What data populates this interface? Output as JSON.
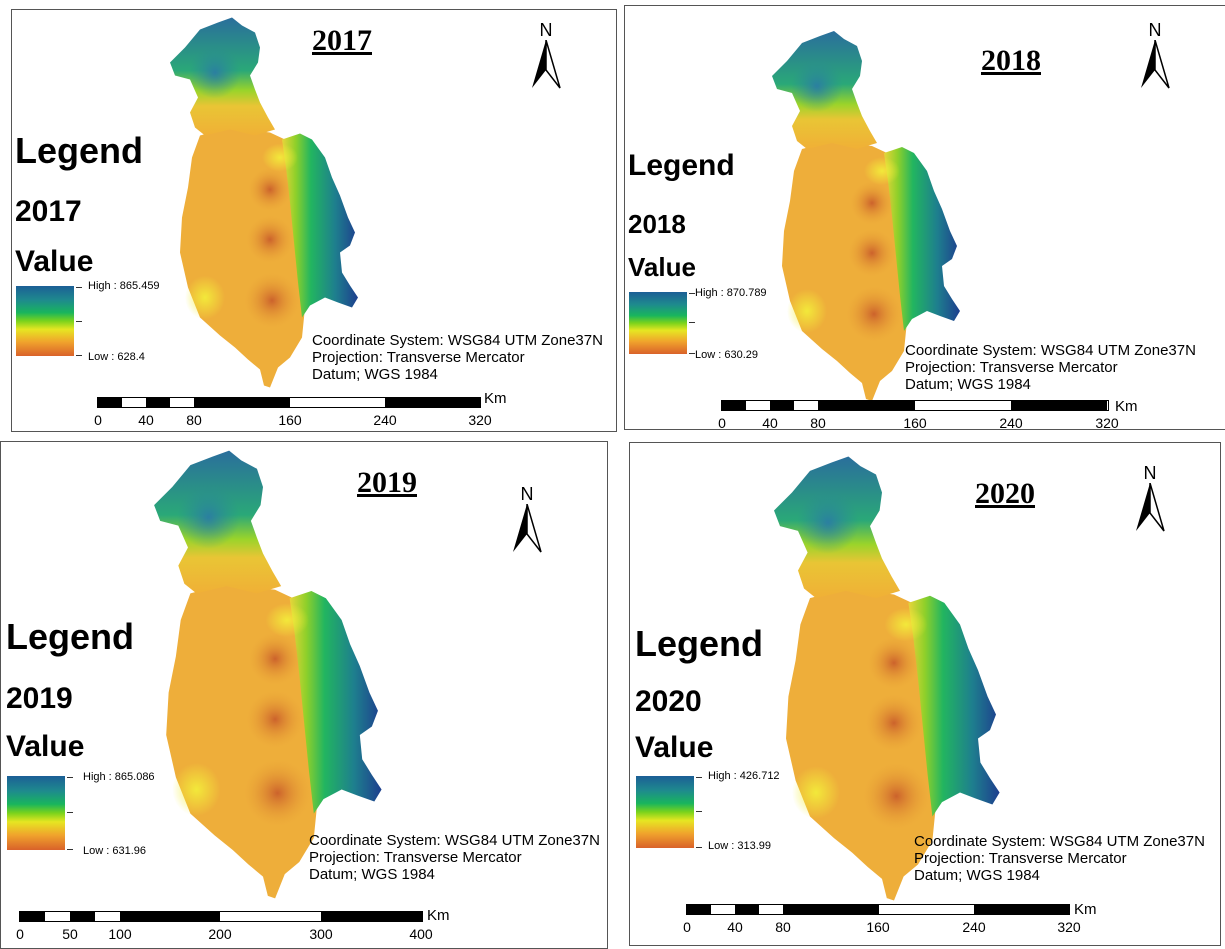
{
  "panels": [
    {
      "title": "2017",
      "legend": {
        "heading": "Legend",
        "year": "2017",
        "value_label": "Value",
        "high": "High : 865.459",
        "low": "Low : 628.4"
      },
      "north": "N",
      "coord": [
        "Coordinate System: WSG84 UTM Zone37N",
        "Projection: Transverse Mercator",
        "Datum; WGS 1984"
      ],
      "scale": {
        "unit": "Km",
        "labels": [
          "0",
          "40",
          "80",
          "160",
          "240",
          "320"
        ]
      }
    },
    {
      "title": "2018",
      "legend": {
        "heading": "Legend",
        "year": "2018",
        "value_label": "Value",
        "high": "High : 870.789",
        "low": "Low : 630.29"
      },
      "north": "N",
      "coord": [
        "Coordinate System: WSG84 UTM Zone37N",
        "Projection: Transverse Mercator",
        "Datum; WGS 1984"
      ],
      "scale": {
        "unit": "Km",
        "labels": [
          "0",
          "40",
          "80",
          "160",
          "240",
          "320"
        ]
      }
    },
    {
      "title": "2019",
      "legend": {
        "heading": "Legend",
        "year": "2019",
        "value_label": "Value",
        "high": "High : 865.086",
        "low": "Low : 631.96"
      },
      "north": "N",
      "coord": [
        "Coordinate System: WSG84 UTM Zone37N",
        "Projection: Transverse Mercator",
        "Datum; WGS 1984"
      ],
      "scale": {
        "unit": "Km",
        "labels": [
          "0",
          "50",
          "100",
          "200",
          "300",
          "400"
        ]
      }
    },
    {
      "title": "2020",
      "legend": {
        "heading": "Legend",
        "year": "2020",
        "value_label": "Value",
        "high": "High : 426.712",
        "low": "Low : 313.99"
      },
      "north": "N",
      "coord": [
        "Coordinate System: WSG84 UTM Zone37N",
        "Projection: Transverse Mercator",
        "Datum; WGS 1984"
      ],
      "scale": {
        "unit": "Km",
        "labels": [
          "0",
          "40",
          "80",
          "160",
          "240",
          "320"
        ]
      }
    }
  ],
  "colors": {
    "ramp": [
      "#1c5f96",
      "#1e8a8e",
      "#19b55d",
      "#7ad31c",
      "#e6e622",
      "#f0a32c",
      "#d9622a"
    ],
    "border": "#555555"
  },
  "icons": {
    "north_arrow": "north-arrow-icon"
  }
}
